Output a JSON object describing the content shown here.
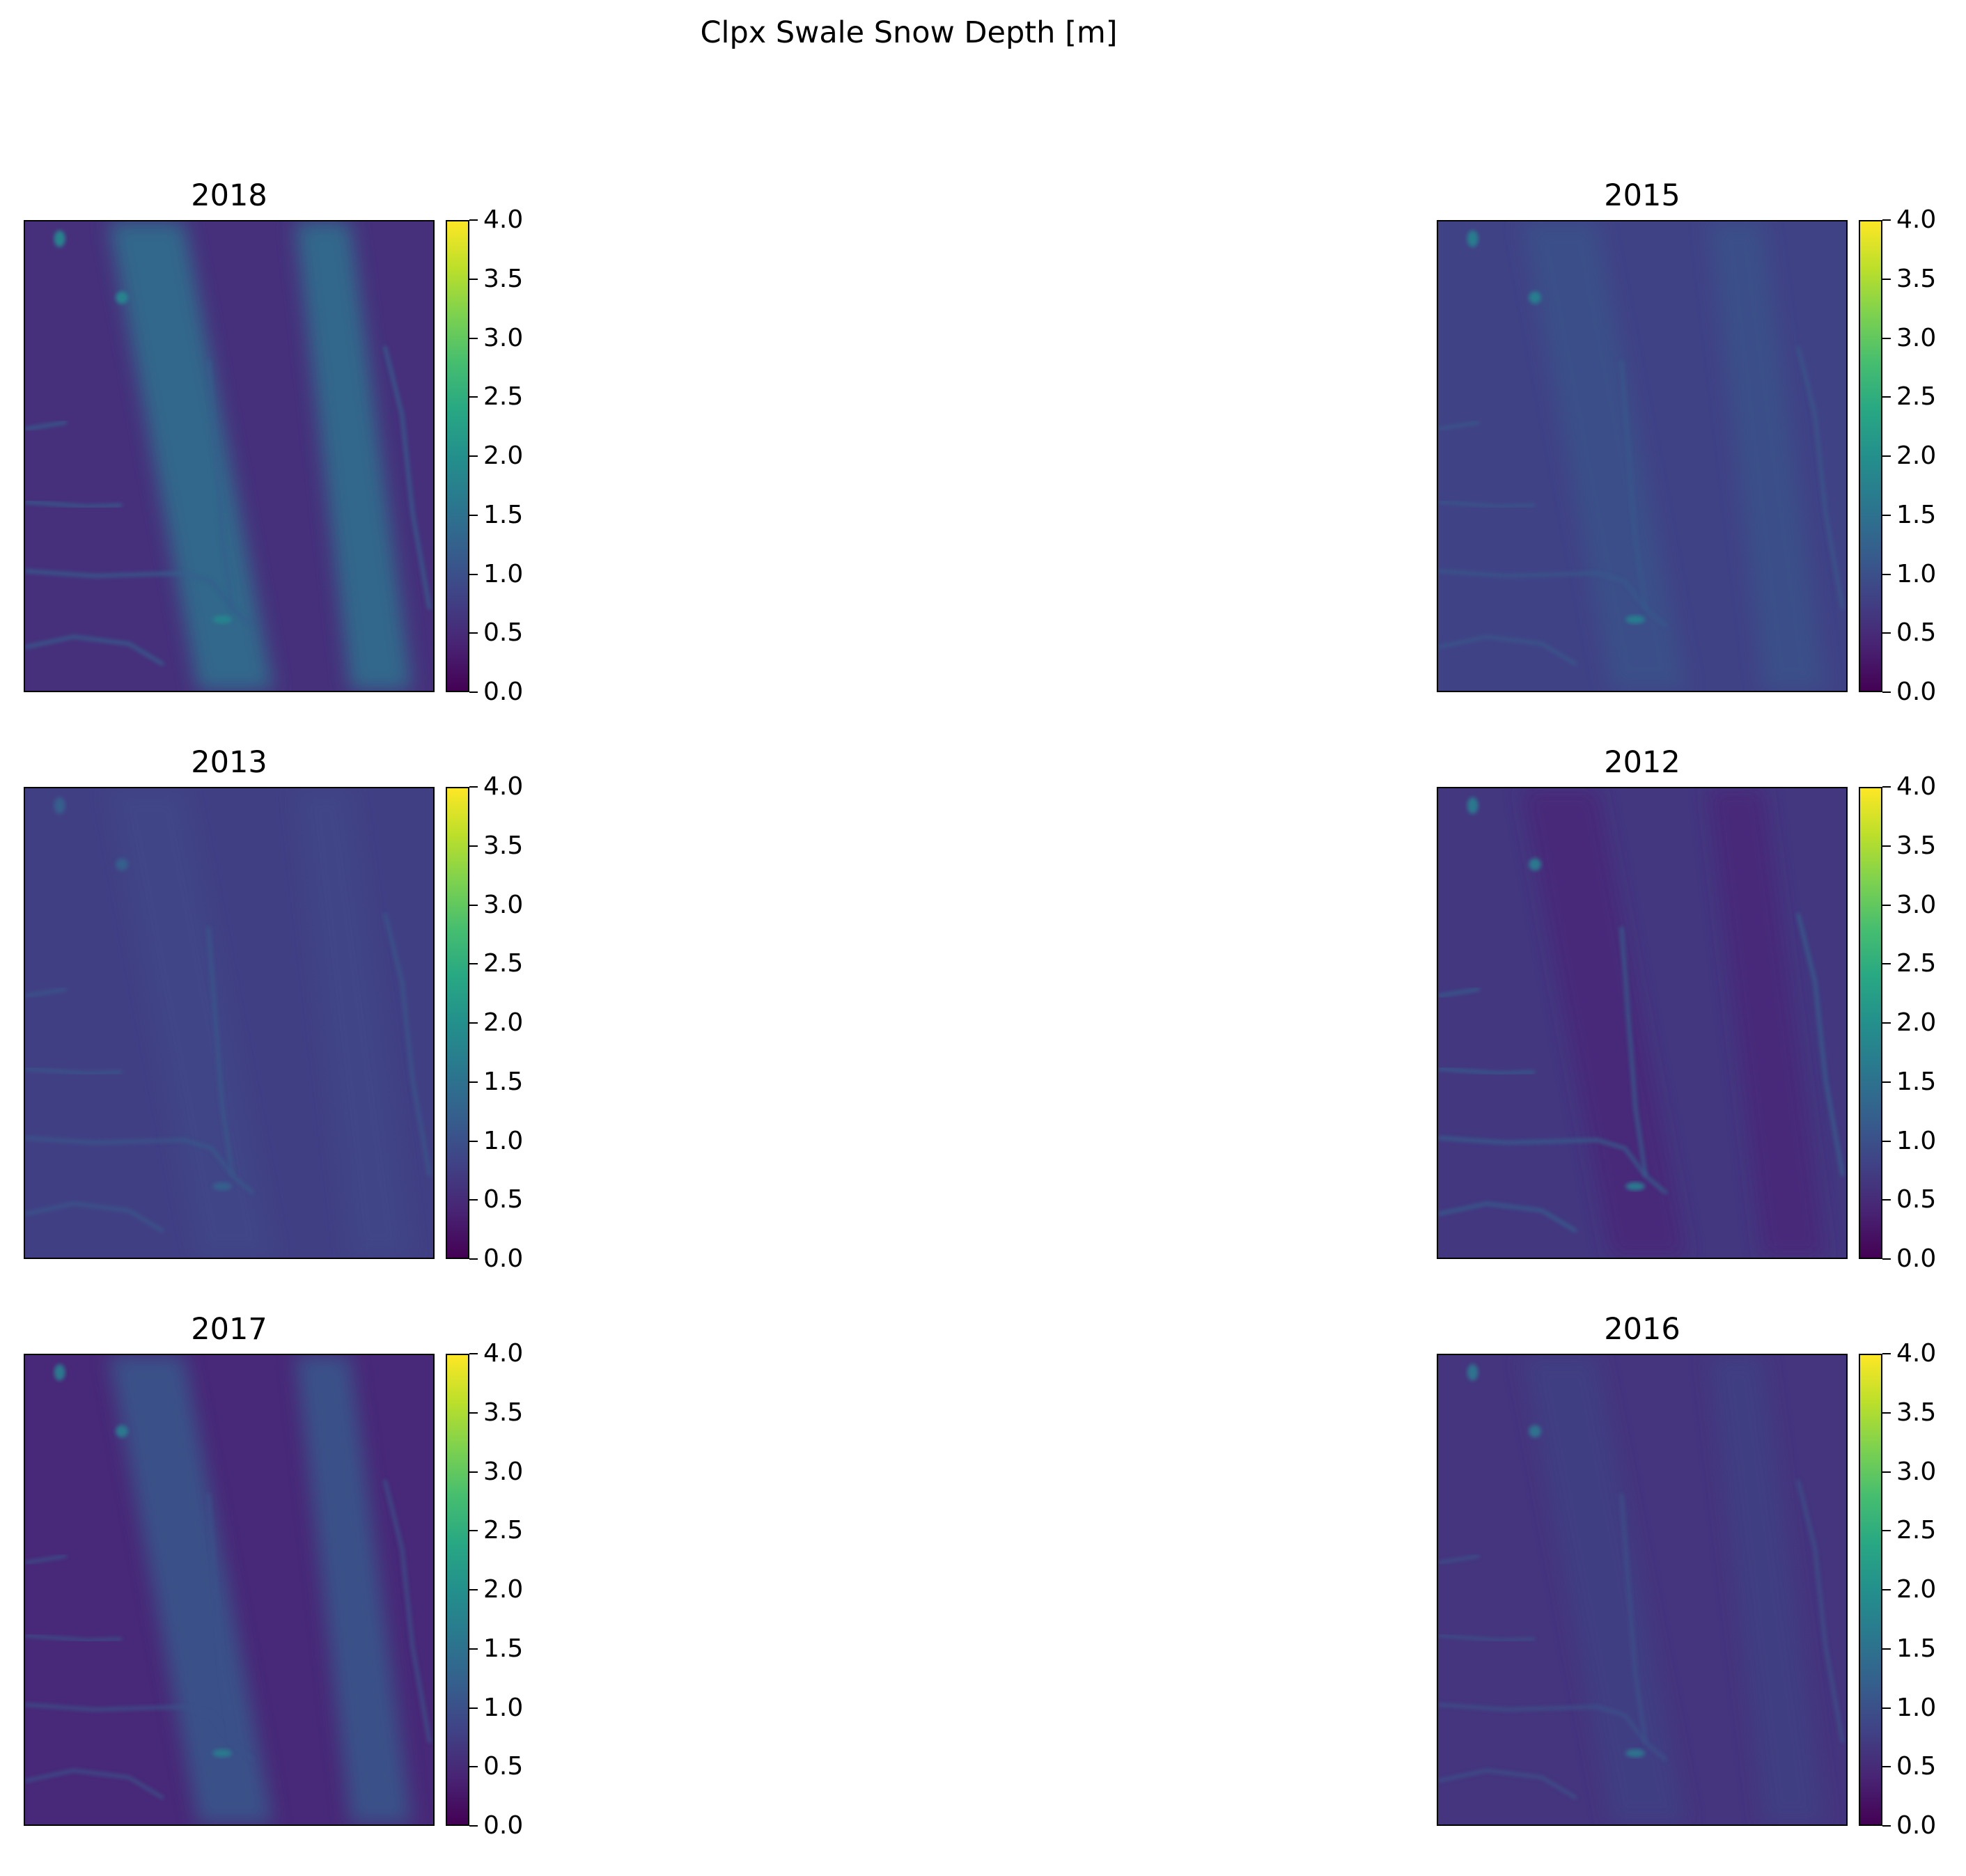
{
  "figure": {
    "suptitle": "Clpx Swale Snow Depth [m]"
  },
  "colormap": {
    "name": "viridis",
    "stops": [
      "#440154",
      "#482878",
      "#3e4989",
      "#31688e",
      "#26828e",
      "#1f9e89",
      "#35b779",
      "#6ece58",
      "#b5de2b",
      "#fde725"
    ]
  },
  "chart_data": [
    {
      "type": "heatmap",
      "title": "2018",
      "colorbar": {
        "range": [
          0.0,
          4.0
        ],
        "ticks": [
          "0.0",
          "0.5",
          "1.0",
          "1.5",
          "2.0",
          "2.5",
          "3.0",
          "3.5",
          "4.0"
        ]
      },
      "typical_depth_m": 0.55,
      "drift_depth_m": 1.5,
      "channel_depth_m": 1.2,
      "deep_spot_m": 1.8,
      "axes_ticks": "none"
    },
    {
      "type": "heatmap",
      "title": "2015",
      "colorbar": {
        "range": [
          0.0,
          4.0
        ],
        "ticks": [
          "0.0",
          "0.5",
          "1.0",
          "1.5",
          "2.0",
          "2.5",
          "3.0",
          "3.5",
          "4.0"
        ]
      },
      "typical_depth_m": 0.8,
      "drift_depth_m": 1.0,
      "channel_depth_m": 1.1,
      "deep_spot_m": 1.7,
      "axes_ticks": "none"
    },
    {
      "type": "heatmap",
      "title": "2013",
      "colorbar": {
        "range": [
          0.0,
          4.0
        ],
        "ticks": [
          "0.0",
          "0.5",
          "1.0",
          "1.5",
          "2.0",
          "2.5",
          "3.0",
          "3.5",
          "4.0"
        ]
      },
      "typical_depth_m": 0.75,
      "drift_depth_m": 0.85,
      "channel_depth_m": 1.1,
      "deep_spot_m": 1.2,
      "axes_ticks": "none"
    },
    {
      "type": "heatmap",
      "title": "2012",
      "colorbar": {
        "range": [
          0.0,
          4.0
        ],
        "ticks": [
          "0.0",
          "0.5",
          "1.0",
          "1.5",
          "2.0",
          "2.5",
          "3.0",
          "3.5",
          "4.0"
        ]
      },
      "typical_depth_m": 0.65,
      "drift_depth_m": 0.45,
      "channel_depth_m": 1.2,
      "deep_spot_m": 1.6,
      "axes_ticks": "none"
    },
    {
      "type": "heatmap",
      "title": "2017",
      "colorbar": {
        "range": [
          0.0,
          4.0
        ],
        "ticks": [
          "0.0",
          "0.5",
          "1.0",
          "1.5",
          "2.0",
          "2.5",
          "3.0",
          "3.5",
          "4.0"
        ]
      },
      "typical_depth_m": 0.45,
      "drift_depth_m": 1.1,
      "channel_depth_m": 1.0,
      "deep_spot_m": 1.6,
      "axes_ticks": "none"
    },
    {
      "type": "heatmap",
      "title": "2016",
      "colorbar": {
        "range": [
          0.0,
          4.0
        ],
        "ticks": [
          "0.0",
          "0.5",
          "1.0",
          "1.5",
          "2.0",
          "2.5",
          "3.0",
          "3.5",
          "4.0"
        ]
      },
      "typical_depth_m": 0.6,
      "drift_depth_m": 0.75,
      "channel_depth_m": 1.0,
      "deep_spot_m": 1.5,
      "axes_ticks": "none"
    }
  ]
}
